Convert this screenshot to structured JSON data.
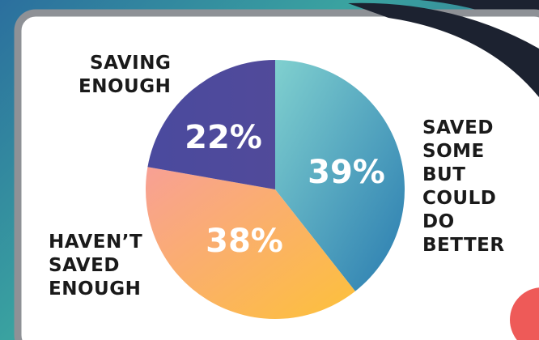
{
  "chart_data": {
    "type": "pie",
    "categories": [
      "SAVED\nSOME\nBUT\nCOULD\nDO\nBETTER",
      "HAVEN’T\nSAVED\nENOUGH",
      "SAVING\nENOUGH"
    ],
    "values": [
      39,
      38,
      22
    ],
    "value_labels": [
      "39%",
      "38%",
      "22%"
    ],
    "gradients": [
      [
        "#80d0cf",
        "#2a7cb0"
      ],
      [
        "#f8a095",
        "#fdc13a"
      ],
      [
        "#4a4a9e",
        "#514a9a"
      ]
    ]
  }
}
